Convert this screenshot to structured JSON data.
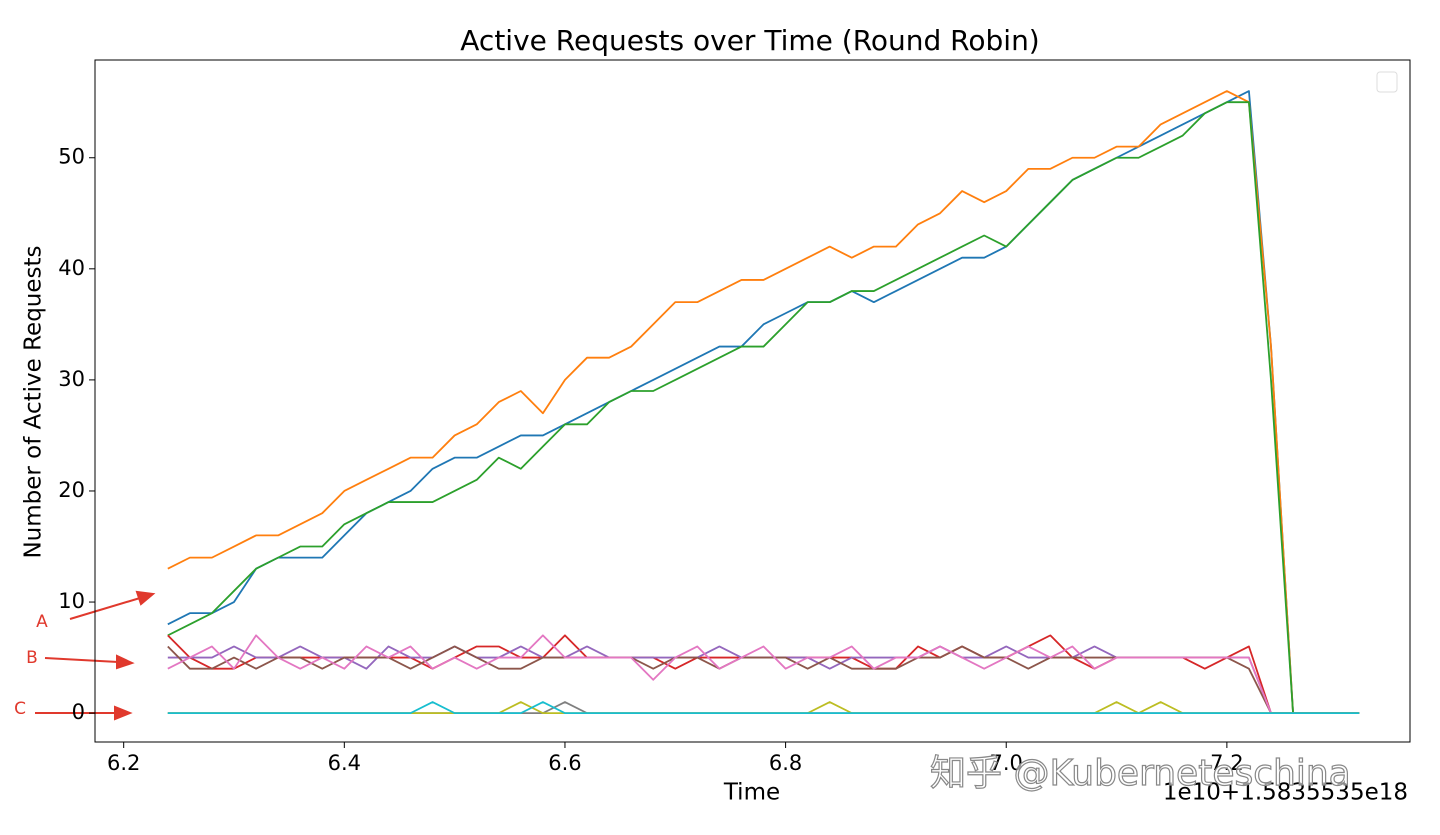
{
  "chart_data": {
    "type": "line",
    "title": "Active Requests over Time (Round Robin)",
    "x_label": "Time",
    "y_label": "Number of Active Requests",
    "x_offset_label": "1e10+1.5835535e18",
    "xlim": [
      6.174,
      7.366
    ],
    "ylim": [
      -2.6,
      58.8
    ],
    "xticks": [
      6.2,
      6.4,
      6.6,
      6.8,
      {
        "value": 7,
        "label": "7.0"
      },
      7.2
    ],
    "yticks": [
      0,
      10,
      20,
      30,
      40,
      50
    ],
    "x": [
      6.24,
      6.26,
      6.28,
      6.3,
      6.32,
      6.34,
      6.36,
      6.38,
      6.4,
      6.42,
      6.44,
      6.46,
      6.48,
      6.5,
      6.52,
      6.54,
      6.56,
      6.58,
      6.6,
      6.62,
      6.64,
      6.66,
      6.68,
      6.7,
      6.72,
      6.74,
      6.76,
      6.78,
      6.8,
      6.82,
      6.84,
      6.86,
      6.88,
      6.9,
      6.92,
      6.94,
      6.96,
      6.98,
      7.0,
      7.02,
      7.04,
      7.06,
      7.08,
      7.1,
      7.12,
      7.14,
      7.16,
      7.18,
      7.2,
      7.22,
      7.24,
      7.26,
      7.32
    ],
    "series": [
      {
        "color": "#1f77b4",
        "values": [
          8,
          9,
          9,
          10,
          13,
          14,
          14,
          14,
          16,
          18,
          19,
          20,
          22,
          23,
          23,
          24,
          25,
          25,
          26,
          27,
          28,
          29,
          30,
          31,
          32,
          33,
          33,
          35,
          36,
          37,
          37,
          38,
          37,
          38,
          39,
          40,
          41,
          41,
          42,
          44,
          46,
          48,
          49,
          50,
          51,
          52,
          53,
          54,
          55,
          56,
          33,
          0,
          0
        ]
      },
      {
        "color": "#ff7f0e",
        "values": [
          13,
          14,
          14,
          15,
          16,
          16,
          17,
          18,
          20,
          21,
          22,
          23,
          23,
          25,
          26,
          28,
          29,
          27,
          30,
          32,
          32,
          33,
          35,
          37,
          37,
          38,
          39,
          39,
          40,
          41,
          42,
          41,
          42,
          42,
          44,
          45,
          47,
          46,
          47,
          49,
          49,
          50,
          50,
          51,
          51,
          53,
          54,
          55,
          56,
          55,
          33,
          0,
          0
        ]
      },
      {
        "color": "#2ca02c",
        "values": [
          7,
          8,
          9,
          11,
          13,
          14,
          15,
          15,
          17,
          18,
          19,
          19,
          19,
          20,
          21,
          23,
          22,
          24,
          26,
          26,
          28,
          29,
          29,
          30,
          31,
          32,
          33,
          33,
          35,
          37,
          37,
          38,
          38,
          39,
          40,
          41,
          42,
          43,
          42,
          44,
          46,
          48,
          49,
          50,
          50,
          51,
          52,
          54,
          55,
          55,
          30,
          0,
          0
        ]
      },
      {
        "color": "#d62728",
        "values": [
          7,
          5,
          4,
          4,
          5,
          5,
          5,
          5,
          5,
          5,
          5,
          5,
          4,
          5,
          6,
          6,
          5,
          5,
          7,
          5,
          5,
          5,
          5,
          4,
          5,
          5,
          5,
          5,
          5,
          5,
          5,
          5,
          4,
          4,
          6,
          5,
          6,
          5,
          5,
          6,
          7,
          5,
          4,
          5,
          5,
          5,
          5,
          4,
          5,
          6,
          0,
          0,
          0
        ]
      },
      {
        "color": "#9467bd",
        "values": [
          5,
          5,
          5,
          6,
          5,
          5,
          6,
          5,
          5,
          4,
          6,
          5,
          5,
          6,
          5,
          5,
          6,
          5,
          5,
          6,
          5,
          5,
          5,
          5,
          5,
          6,
          5,
          5,
          5,
          5,
          4,
          5,
          5,
          5,
          5,
          6,
          5,
          5,
          6,
          5,
          5,
          5,
          6,
          5,
          5,
          5,
          5,
          5,
          5,
          5,
          0,
          0,
          0
        ]
      },
      {
        "color": "#8c564b",
        "values": [
          6,
          4,
          4,
          5,
          4,
          5,
          5,
          4,
          5,
          5,
          5,
          4,
          5,
          6,
          5,
          4,
          4,
          5,
          5,
          5,
          5,
          5,
          4,
          5,
          5,
          4,
          5,
          5,
          5,
          4,
          5,
          4,
          4,
          4,
          5,
          5,
          6,
          5,
          5,
          4,
          5,
          5,
          5,
          5,
          5,
          5,
          5,
          5,
          5,
          4,
          0,
          0,
          0
        ]
      },
      {
        "color": "#e377c2",
        "values": [
          4,
          5,
          6,
          4,
          7,
          5,
          4,
          5,
          4,
          6,
          5,
          6,
          4,
          5,
          4,
          5,
          5,
          7,
          5,
          5,
          5,
          5,
          3,
          5,
          6,
          4,
          5,
          6,
          4,
          5,
          5,
          6,
          4,
          5,
          5,
          6,
          5,
          4,
          5,
          6,
          5,
          6,
          4,
          5,
          5,
          5,
          5,
          5,
          5,
          5,
          0,
          0,
          0
        ]
      },
      {
        "color": "#7f7f7f",
        "values": [
          0,
          0,
          0,
          0,
          0,
          0,
          0,
          0,
          0,
          0,
          0,
          0,
          0,
          0,
          0,
          0,
          0,
          0,
          1,
          0,
          0,
          0,
          0,
          0,
          0,
          0,
          0,
          0,
          0,
          0,
          0,
          0,
          0,
          0,
          0,
          0,
          0,
          0,
          0,
          0,
          0,
          0,
          0,
          0,
          0,
          0,
          0,
          0,
          0,
          0,
          0,
          0,
          0
        ]
      },
      {
        "color": "#bcbd22",
        "values": [
          0,
          0,
          0,
          0,
          0,
          0,
          0,
          0,
          0,
          0,
          0,
          0,
          0,
          0,
          0,
          0,
          1,
          0,
          0,
          0,
          0,
          0,
          0,
          0,
          0,
          0,
          0,
          0,
          0,
          0,
          1,
          0,
          0,
          0,
          0,
          0,
          0,
          0,
          0,
          0,
          0,
          0,
          0,
          1,
          0,
          1,
          0,
          0,
          0,
          0,
          0,
          0,
          0
        ]
      },
      {
        "color": "#17becf",
        "values": [
          0,
          0,
          0,
          0,
          0,
          0,
          0,
          0,
          0,
          0,
          0,
          0,
          1,
          0,
          0,
          0,
          0,
          1,
          0,
          0,
          0,
          0,
          0,
          0,
          0,
          0,
          0,
          0,
          0,
          0,
          0,
          0,
          0,
          0,
          0,
          0,
          0,
          0,
          0,
          0,
          0,
          0,
          0,
          0,
          0,
          0,
          0,
          0,
          0,
          0,
          0,
          0,
          0
        ]
      }
    ],
    "annotations": [
      {
        "text": "A"
      },
      {
        "text": "B"
      },
      {
        "text": "C"
      }
    ]
  },
  "watermark": "知乎 @Kuberneteschina"
}
